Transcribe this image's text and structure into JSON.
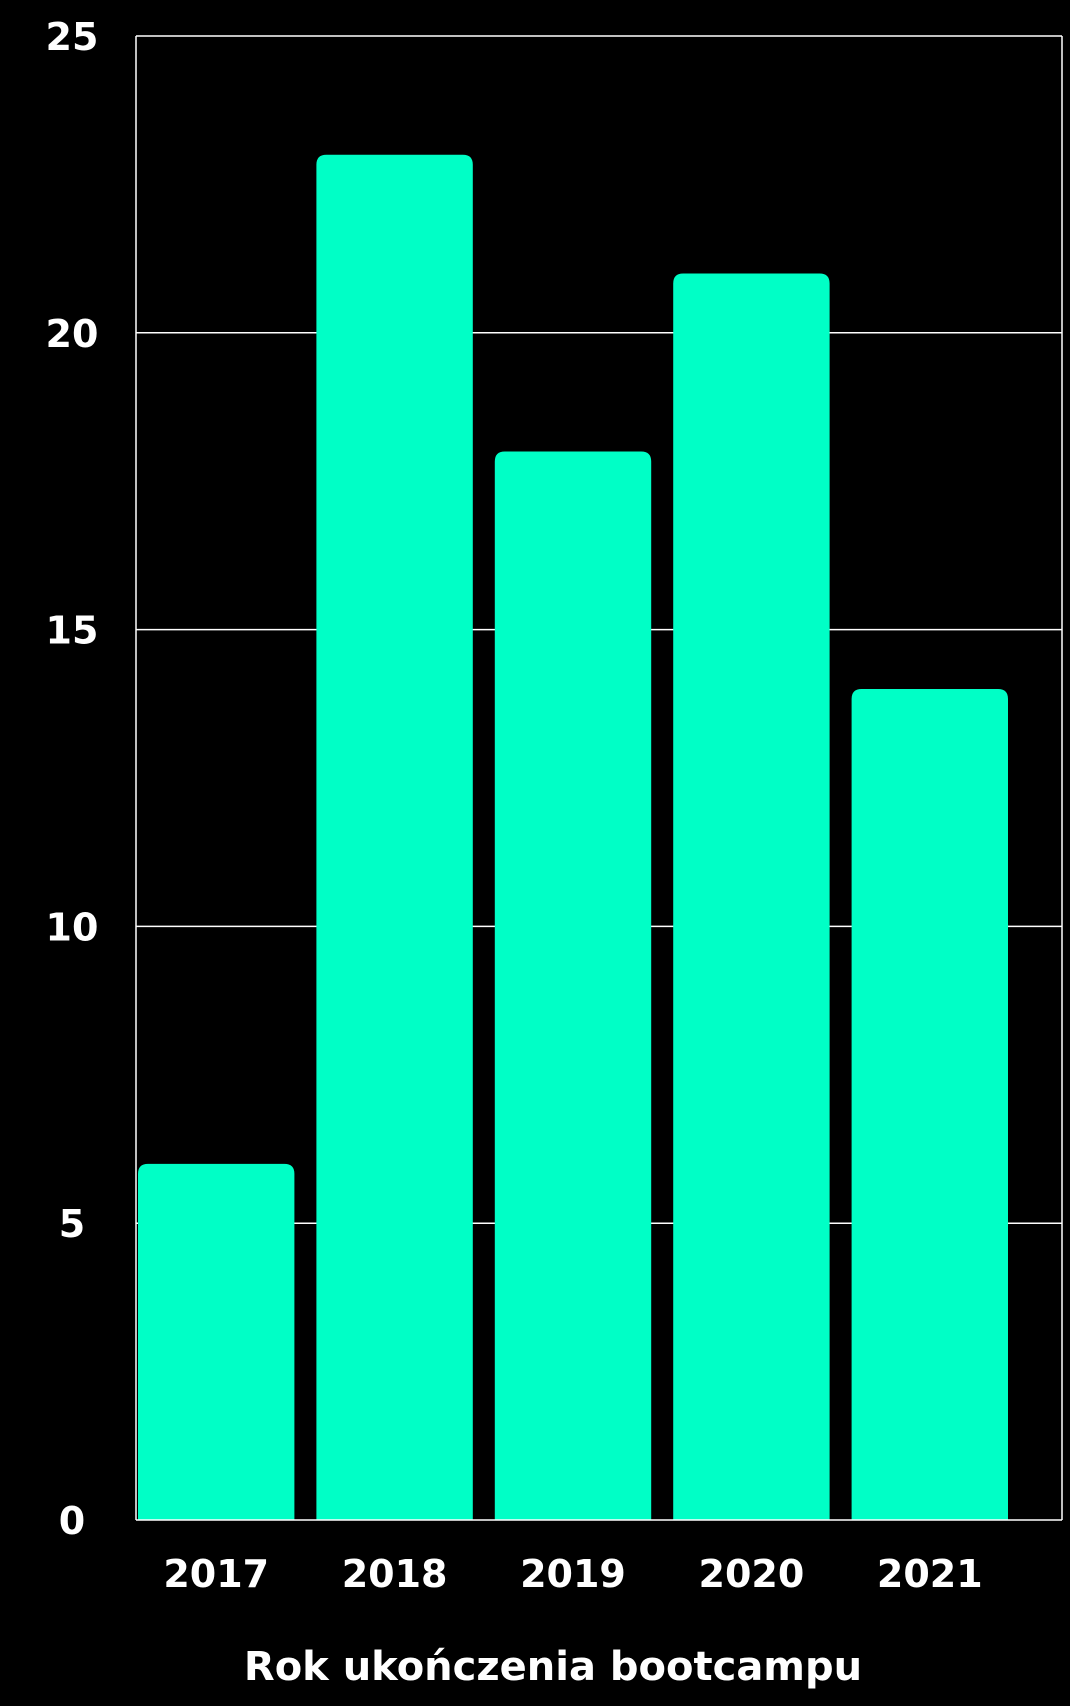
{
  "chart_data": {
    "type": "bar",
    "title": "",
    "xlabel": "Rok ukończenia bootcampu",
    "ylabel": "",
    "categories": [
      "2017",
      "2018",
      "2019",
      "2020",
      "2021"
    ],
    "values": [
      6,
      23,
      18,
      21,
      14
    ],
    "ylim": [
      0,
      25
    ],
    "yticks": [
      "0",
      "5",
      "10",
      "15",
      "20",
      "25"
    ],
    "grid": true,
    "legend": "none",
    "colors": {
      "bar": "#00FFC6",
      "background": "#000000",
      "text": "#FFFFFF",
      "grid": "#FFFFFF"
    }
  }
}
